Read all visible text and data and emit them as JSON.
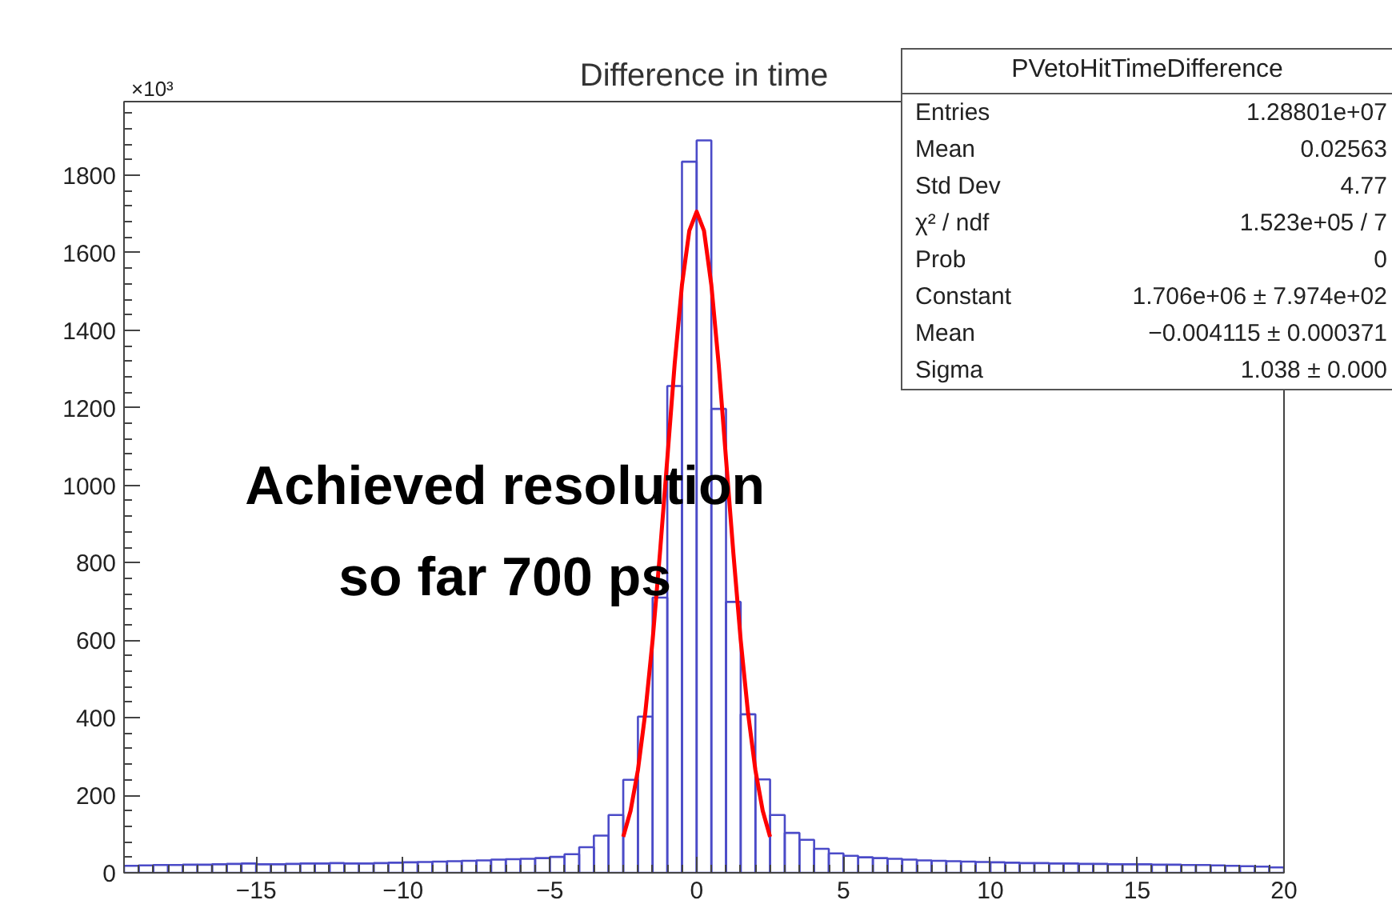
{
  "chart_data": {
    "type": "histogram",
    "title": "Difference in time",
    "bins": [
      -19.5,
      -19,
      -18.5,
      -18,
      -17.5,
      -17,
      -16.5,
      -16,
      -15.5,
      -15,
      -14.5,
      -14,
      -13.5,
      -13,
      -12.5,
      -12,
      -11.5,
      -11,
      -10.5,
      -10,
      -9.5,
      -9,
      -8.5,
      -8,
      -7.5,
      -7,
      -6.5,
      -6,
      -5.5,
      -5,
      -4.5,
      -4,
      -3.5,
      -3,
      -2.5,
      -2,
      -1.5,
      -1,
      -0.5,
      0,
      0.5,
      1,
      1.5,
      2,
      2.5,
      3,
      3.5,
      4,
      4.5,
      5,
      5.5,
      6,
      6.5,
      7,
      7.5,
      8,
      8.5,
      9,
      9.5,
      10,
      10.5,
      11,
      11.5,
      12,
      12.5,
      13,
      13.5,
      14,
      14.5,
      15,
      15.5,
      16,
      16.5,
      17,
      17.5,
      18,
      18.5,
      19,
      19.5,
      20
    ],
    "series": [
      {
        "color": "#4b4bc8",
        "values": [
          18,
          19,
          20,
          20,
          21,
          21,
          22,
          23,
          24,
          22,
          22,
          23,
          24,
          24,
          25,
          24,
          24,
          25,
          26,
          27,
          28,
          29,
          30,
          31,
          32,
          34,
          35,
          36,
          38,
          41,
          48,
          66,
          96,
          149,
          240,
          403,
          710,
          1256,
          1835,
          1890,
          1197,
          699,
          409,
          241,
          149,
          103,
          85,
          62,
          50,
          44,
          40,
          38,
          36,
          34,
          32,
          31,
          30,
          29,
          28,
          27,
          26,
          25,
          25,
          24,
          24,
          23,
          23,
          22,
          22,
          22,
          21,
          21,
          20,
          20,
          19,
          18,
          17,
          16,
          14
        ]
      },
      {
        "type": "line",
        "color": "#ff0000",
        "x": [
          -2.5,
          -2.25,
          -2,
          -1.75,
          -1.5,
          -1.25,
          -1,
          -0.75,
          -0.5,
          -0.25,
          0,
          0.25,
          0.5,
          0.75,
          1,
          1.25,
          1.5,
          1.75,
          2,
          2.25,
          2.5
        ],
        "values": [
          93,
          160,
          265,
          412,
          600,
          825,
          1068,
          1312,
          1517,
          1657,
          1706,
          1657,
          1517,
          1312,
          1068,
          825,
          600,
          412,
          265,
          160,
          93
        ]
      }
    ],
    "xlim": [
      -19.5,
      20
    ],
    "xticks": [
      -15,
      -10,
      -5,
      0,
      5,
      10,
      15,
      20
    ],
    "ylim": [
      0,
      1990
    ],
    "yticks": [
      0,
      200,
      400,
      600,
      800,
      1000,
      1200,
      1400,
      1600,
      1800
    ],
    "grid": false,
    "annotations": [
      "×10³",
      "Achieved resolution\nso far 700 ps",
      "PVetoHitTimeDifference",
      "Entries\t1.28801e+07",
      "Mean\t0.02563",
      "Std Dev\t4.77",
      "χ² / ndf\t1.523e+05 / 7",
      "Prob\t0",
      "Constant\t1.706e+06 ± 7.974e+02",
      "Mean\t−0.004115 ± 0.000371",
      "Sigma\t1.038 ± 0.000"
    ]
  }
}
